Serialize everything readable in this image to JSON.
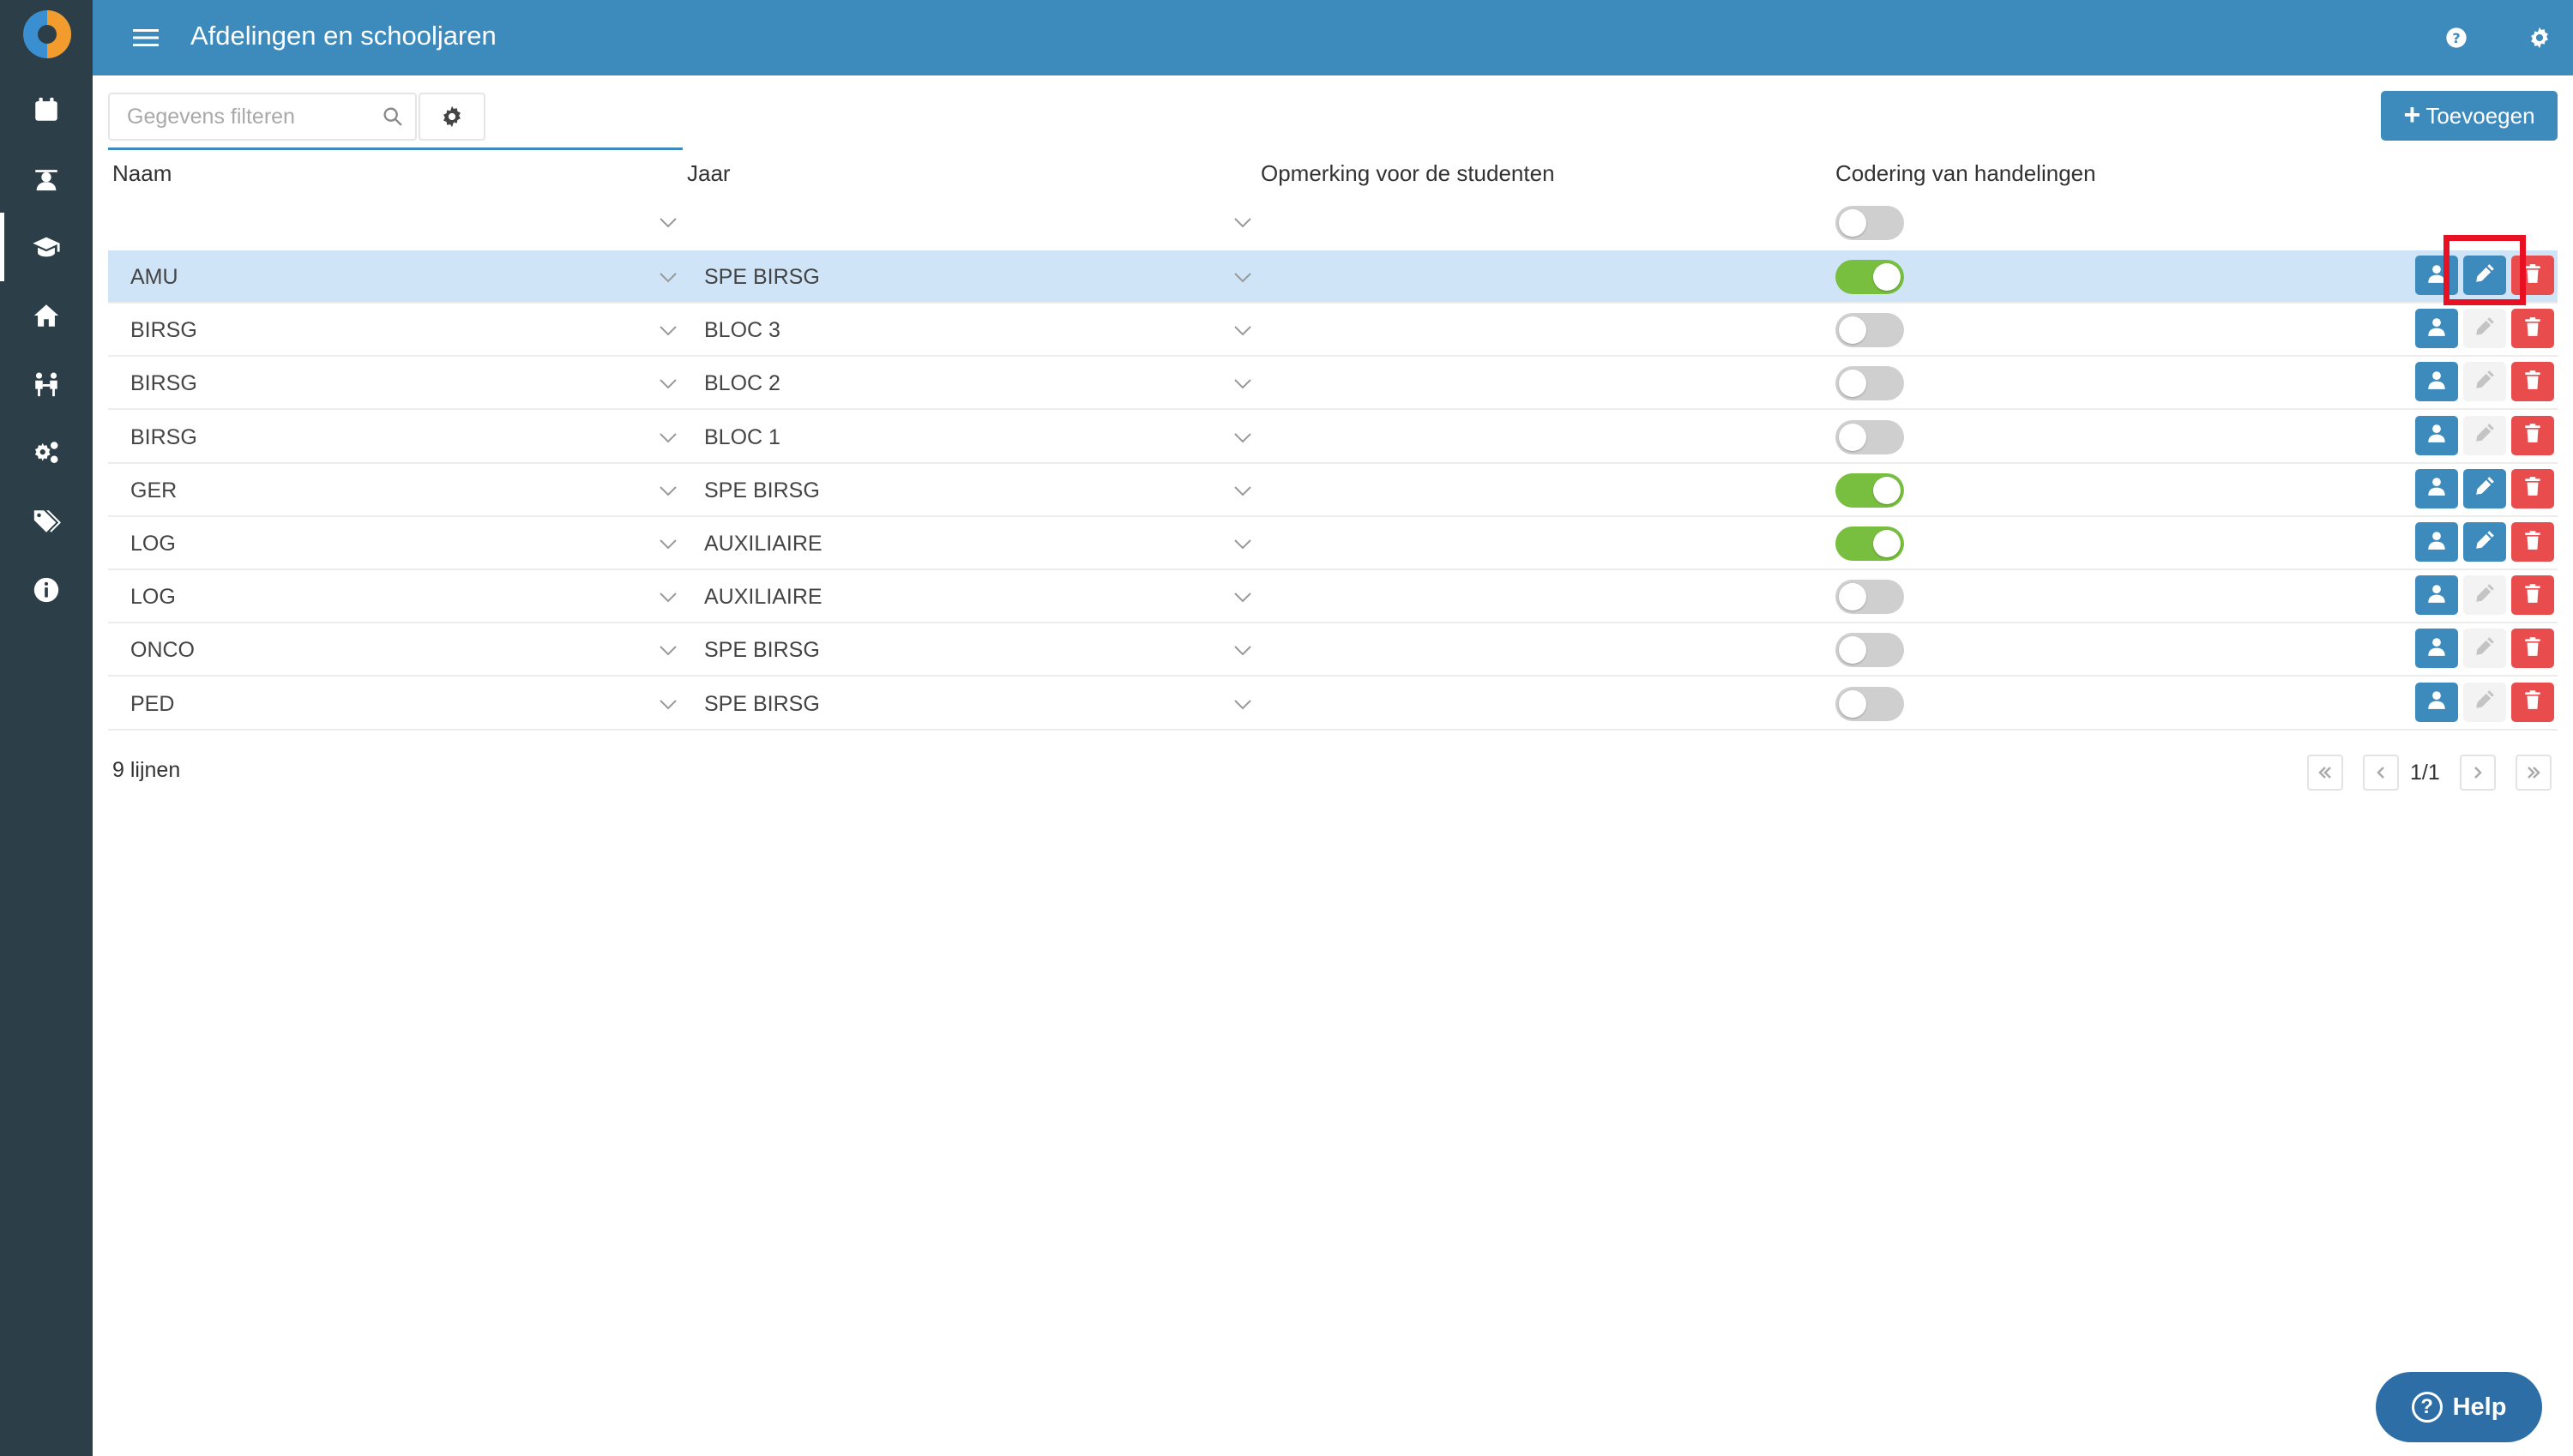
{
  "app": {
    "title": "Afdelingen en schooljaren",
    "colors": {
      "primary": "#3d8bbd",
      "sidebar": "#2c3e47",
      "toggle_on": "#78bf3f",
      "danger": "#e84c4c",
      "selected_row": "#cfe5f7",
      "highlight": "#e81123"
    }
  },
  "sidebar": {
    "items": [
      {
        "icon": "calendar-icon",
        "active": false
      },
      {
        "icon": "student-icon",
        "active": false
      },
      {
        "icon": "graduation-cap-icon",
        "active": true
      },
      {
        "icon": "home-icon",
        "active": false
      },
      {
        "icon": "people-icon",
        "active": false
      },
      {
        "icon": "gears-icon",
        "active": false
      },
      {
        "icon": "tags-icon",
        "active": false
      },
      {
        "icon": "info-icon",
        "active": false
      }
    ]
  },
  "topbar": {
    "icons": [
      "menu-icon",
      "help-circle-icon",
      "gear-icon"
    ]
  },
  "toolbar": {
    "filter_placeholder": "Gegevens filteren",
    "filter_value": "",
    "add_label": "Toevoegen"
  },
  "table": {
    "columns": [
      "Naam",
      "Jaar",
      "Opmerking voor de studenten",
      "Codering van handelingen"
    ],
    "filter_toggle_on": false,
    "rows": [
      {
        "naam": "AMU",
        "jaar": "SPE BIRSG",
        "opmerking": "",
        "codering": true,
        "selected": true
      },
      {
        "naam": "BIRSG",
        "jaar": "BLOC 3",
        "opmerking": "",
        "codering": false,
        "selected": false
      },
      {
        "naam": "BIRSG",
        "jaar": "BLOC 2",
        "opmerking": "",
        "codering": false,
        "selected": false
      },
      {
        "naam": "BIRSG",
        "jaar": "BLOC 1",
        "opmerking": "",
        "codering": false,
        "selected": false
      },
      {
        "naam": "GER",
        "jaar": "SPE BIRSG",
        "opmerking": "",
        "codering": true,
        "selected": false
      },
      {
        "naam": "LOG",
        "jaar": "AUXILIAIRE",
        "opmerking": "",
        "codering": true,
        "selected": false
      },
      {
        "naam": "LOG",
        "jaar": "AUXILIAIRE",
        "opmerking": "",
        "codering": false,
        "selected": false
      },
      {
        "naam": "ONCO",
        "jaar": "SPE BIRSG",
        "opmerking": "",
        "codering": false,
        "selected": false
      },
      {
        "naam": "PED",
        "jaar": "SPE BIRSG",
        "opmerking": "",
        "codering": false,
        "selected": false
      }
    ]
  },
  "footer": {
    "count": "9 lijnen",
    "page": "1/1"
  },
  "help": {
    "label": "Help"
  }
}
